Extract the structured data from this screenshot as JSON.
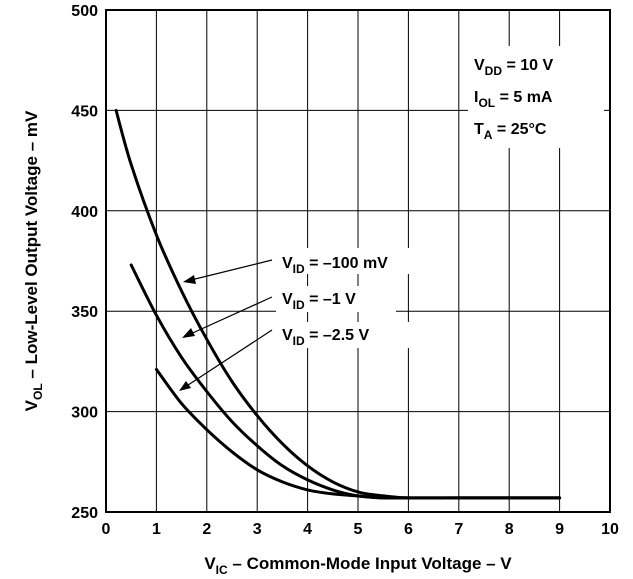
{
  "chart_data": {
    "type": "line",
    "title": "",
    "xlabel": {
      "main": "V",
      "sub": "IC",
      "rest": " – Common-Mode Input Voltage – V"
    },
    "ylabel": {
      "main": "V",
      "sub": "OL",
      "rest": " – Low-Level Output Voltage – mV"
    },
    "xlim": [
      0,
      10
    ],
    "ylim": [
      250,
      500
    ],
    "x_ticks": [
      0,
      1,
      2,
      3,
      4,
      5,
      6,
      7,
      8,
      9,
      10
    ],
    "y_ticks": [
      250,
      300,
      350,
      400,
      450,
      500
    ],
    "x_tick_labels": [
      "0",
      "1",
      "2",
      "3",
      "4",
      "5",
      "6",
      "7",
      "8",
      "9",
      "10"
    ],
    "y_tick_labels": [
      "250",
      "300",
      "350",
      "400",
      "450",
      "500"
    ],
    "grid": true,
    "conditions": [
      {
        "main": "V",
        "sub": "DD",
        "rest": " = 10 V"
      },
      {
        "main": "I",
        "sub": "OL",
        "rest": " = 5 mA"
      },
      {
        "main": "T",
        "sub": "A",
        "rest": " = 25°C"
      }
    ],
    "series": [
      {
        "label": {
          "main": "V",
          "sub": "ID",
          "rest": " = –100 mV"
        },
        "x": [
          0.2,
          0.5,
          1,
          1.5,
          2,
          2.5,
          3,
          3.5,
          4,
          4.5,
          5,
          5.5,
          6,
          7,
          8,
          9
        ],
        "y": [
          450,
          423,
          388,
          360,
          336,
          315,
          298,
          284,
          273,
          265,
          260,
          258,
          257,
          257,
          257,
          257
        ]
      },
      {
        "label": {
          "main": "V",
          "sub": "ID",
          "rest": " = –1 V"
        },
        "x": [
          0.5,
          1,
          1.5,
          2,
          2.5,
          3,
          3.5,
          4,
          4.5,
          5,
          5.5,
          6,
          7,
          8,
          9
        ],
        "y": [
          373,
          348,
          327,
          310,
          295,
          283,
          273,
          266,
          261,
          258,
          257,
          257,
          257,
          257,
          257
        ]
      },
      {
        "label": {
          "main": "V",
          "sub": "ID",
          "rest": " = –2.5 V"
        },
        "x": [
          1,
          1.5,
          2,
          2.5,
          3,
          3.5,
          4,
          4.5,
          5,
          5.5,
          6,
          7,
          8,
          9
        ],
        "y": [
          321,
          304,
          291,
          280,
          271,
          265,
          261,
          259,
          258,
          257,
          257,
          257,
          257,
          257
        ]
      }
    ]
  }
}
